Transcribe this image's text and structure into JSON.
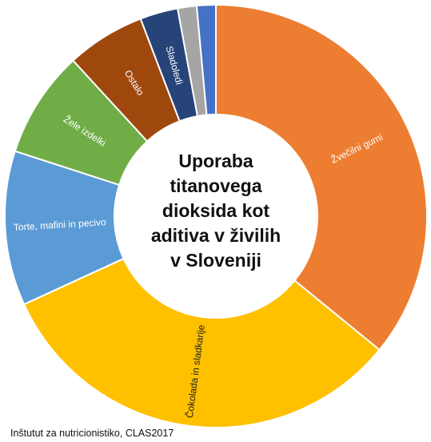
{
  "chart_data": {
    "type": "pie",
    "title_lines": [
      "Uporaba",
      "titanovega",
      "dioksida kot",
      "aditiva v živilih",
      "v Sloveniji"
    ],
    "source": "Inštutut za nutricionistiko, CLAS2017",
    "categories": [
      "Žvečilni gumi",
      "Čokolada in sladkarije",
      "Torte, mafini in pecivo",
      "Žele izdelki",
      "Ostalo",
      "Sladoledi",
      "",
      ""
    ],
    "values": [
      34.6,
      31.1,
      11.4,
      7.9,
      5.8,
      2.8,
      1.4,
      1.4
    ],
    "colors": [
      "#ED7D31",
      "#FFC000",
      "#5B9BD5",
      "#70AD47",
      "#9E480E",
      "#264478",
      "#A5A5A5",
      "#4472C4"
    ],
    "label_colors": [
      "#ffffff",
      "#222222",
      "#ffffff",
      "#ffffff",
      "#ffffff",
      "#ffffff",
      "#ffffff",
      "#ffffff"
    ],
    "legend": "none",
    "donut": true
  }
}
